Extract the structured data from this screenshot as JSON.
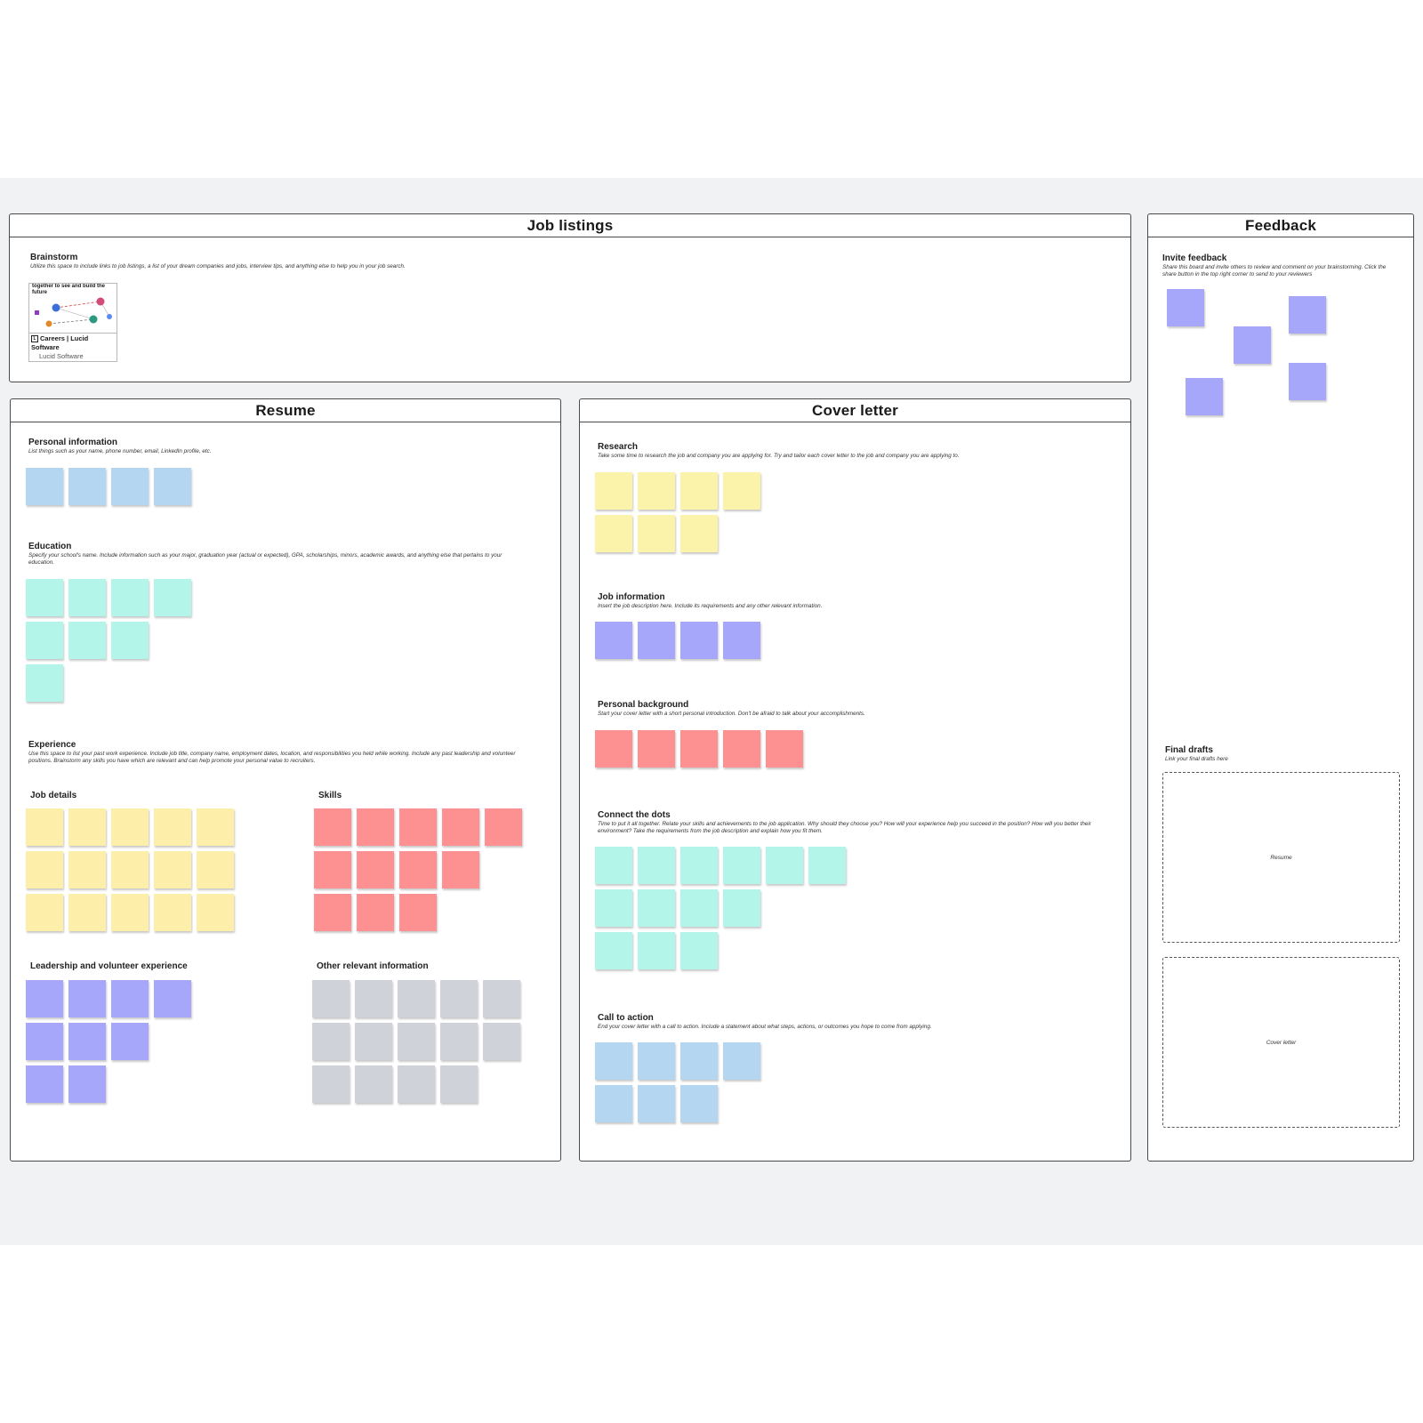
{
  "frames": {
    "job_listings": "Job listings",
    "feedback": "Feedback",
    "resume": "Resume",
    "cover_letter": "Cover letter"
  },
  "brainstorm": {
    "title": "Brainstorm",
    "desc": "Utilize this space to include links to job listings, a list of your dream companies and jobs, interview tips, and anything else to help you in your job search.",
    "link_card": {
      "thumb_text": "together to see and build the future",
      "logo_icon": "lucid-logo-icon",
      "title": "Careers | Lucid Software",
      "source": "Lucid Software"
    }
  },
  "resume": {
    "personal": {
      "title": "Personal information",
      "desc": "List things such as your name, phone number, email, LinkedIn profile, etc."
    },
    "education": {
      "title": "Education",
      "desc": "Specify your school's name. Include information such as your major, graduation year (actual or expected), GPA, scholarships, minors, academic awards, and anything else that pertains to your education."
    },
    "experience": {
      "title": "Experience",
      "desc": "Use this space to list your past work experience. Include job title, company name, employment dates, location, and responsibilities you held while working. Include any past leadership and volunteer positions. Brainstorm any skills you have which are relevant and can help promote your personal value to recruiters."
    },
    "job_details": {
      "title": "Job details"
    },
    "skills": {
      "title": "Skills"
    },
    "leadership": {
      "title": "Leadership and volunteer experience"
    },
    "other": {
      "title": "Other relevant information"
    }
  },
  "cover": {
    "research": {
      "title": "Research",
      "desc": "Take some time to research the job and company you are applying for. Try and tailor each cover letter to the job and company you are applying to."
    },
    "job_info": {
      "title": "Job information",
      "desc": "Insert the job description here. Include its requirements and any other relevant information."
    },
    "background": {
      "title": "Personal background",
      "desc": "Start your cover letter with a short personal introduction. Don't be afraid to talk about your accomplishments."
    },
    "dots": {
      "title": "Connect the dots",
      "desc": "Time to put it all together. Relate your skills and achievements to the job application. Why should they choose you? How will your experience help you succeed in the position? How will you better their environment? Take the requirements from the job description and explain how you fit them."
    },
    "cta": {
      "title": "Call to action",
      "desc": "End your cover letter with a call to action. Include a statement about what steps, actions, or outcomes you hope to come from applying."
    }
  },
  "feedback": {
    "invite": {
      "title": "Invite feedback",
      "desc": "Share this board and invite others to review and comment on your brainstorming. Click the share button in the top right corner to send to your reviewers"
    },
    "final": {
      "title": "Final drafts",
      "desc": "Link your final drafts here"
    },
    "drop_resume": "Resume",
    "drop_cover": "Cover letter"
  },
  "colors": {
    "blue": "#b4d6f0",
    "teal": "#b3f5e8",
    "yellow": "#fcf3ab",
    "purple": "#a6a6fb",
    "red": "#fd9090",
    "gray": "#cfd3d9"
  }
}
